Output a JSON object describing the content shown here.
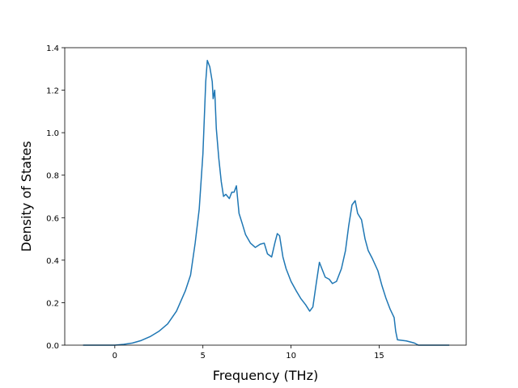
{
  "chart_data": {
    "type": "line",
    "xlabel": "Frequency (THz)",
    "ylabel": "Density of States",
    "xlim": [
      -2.84,
      19.94
    ],
    "ylim": [
      0,
      1.4
    ],
    "xticks": [
      0,
      5,
      10,
      15
    ],
    "yticks": [
      {
        "value": 0,
        "label": "0.0"
      },
      {
        "value": 0.2,
        "label": "0.2"
      },
      {
        "value": 0.4,
        "label": "0.4"
      },
      {
        "value": 0.6,
        "label": "0.6"
      },
      {
        "value": 0.8,
        "label": "0.8"
      },
      {
        "value": 1.0,
        "label": "1.0"
      },
      {
        "value": 1.2,
        "label": "1.2"
      },
      {
        "value": 1.4,
        "label": "1.4"
      }
    ],
    "x": [
      -1.8,
      -1,
      0,
      0.5,
      1,
      1.5,
      2,
      2.5,
      3,
      3.5,
      4,
      4.3,
      4.56,
      4.79,
      5.0,
      5.16,
      5.25,
      5.39,
      5.53,
      5.58,
      5.67,
      5.76,
      5.9,
      6.04,
      6.17,
      6.3,
      6.5,
      6.64,
      6.77,
      6.9,
      7.05,
      7.24,
      7.42,
      7.7,
      7.97,
      8.25,
      8.48,
      8.66,
      8.9,
      9.08,
      9.22,
      9.35,
      9.54,
      9.72,
      10.0,
      10.3,
      10.55,
      10.83,
      11.06,
      11.24,
      11.43,
      11.61,
      11.75,
      11.94,
      12.17,
      12.35,
      12.58,
      12.86,
      13.09,
      13.27,
      13.46,
      13.64,
      13.78,
      14.0,
      14.2,
      14.38,
      14.6,
      14.93,
      15.16,
      15.39,
      15.62,
      15.85,
      15.94,
      16.04,
      16.54,
      17.0,
      17.23,
      18.98
    ],
    "series": [
      {
        "name": "DOS",
        "color": "#1f77b4",
        "values": [
          0,
          0,
          0,
          0.004,
          0.01,
          0.022,
          0.04,
          0.065,
          0.1,
          0.16,
          0.255,
          0.33,
          0.48,
          0.64,
          0.9,
          1.24,
          1.34,
          1.31,
          1.24,
          1.16,
          1.2,
          1.02,
          0.88,
          0.77,
          0.7,
          0.71,
          0.69,
          0.72,
          0.72,
          0.75,
          0.62,
          0.57,
          0.52,
          0.48,
          0.46,
          0.475,
          0.48,
          0.43,
          0.415,
          0.48,
          0.525,
          0.515,
          0.415,
          0.36,
          0.3,
          0.255,
          0.22,
          0.19,
          0.16,
          0.18,
          0.29,
          0.39,
          0.36,
          0.32,
          0.31,
          0.29,
          0.3,
          0.36,
          0.445,
          0.56,
          0.66,
          0.68,
          0.62,
          0.59,
          0.5,
          0.445,
          0.41,
          0.35,
          0.28,
          0.22,
          0.17,
          0.13,
          0.065,
          0.025,
          0.02,
          0.01,
          0,
          0
        ]
      }
    ]
  }
}
